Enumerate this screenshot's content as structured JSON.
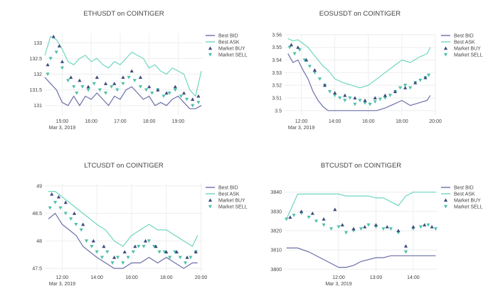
{
  "colors": {
    "bid": "#6b6fa8",
    "ask": "#6fd6c1",
    "buy": "#3f4a7e",
    "sell": "#4fc1a9",
    "grid": "#eeeeee"
  },
  "legend": {
    "bid": "Best BID",
    "ask": "Best ASK",
    "buy": "Market BUY",
    "sell": "Market SELL"
  },
  "chart_data": [
    {
      "type": "line",
      "title": "ETHUSDT on COINTIGER",
      "x_range": [
        14.4,
        19.85
      ],
      "ylim": [
        130.7,
        133.3
      ],
      "yticks": [
        {
          "v": 131,
          "label": "131"
        },
        {
          "v": 131.5,
          "label": "131.5"
        },
        {
          "v": 132,
          "label": "132"
        },
        {
          "v": 132.5,
          "label": "132.5"
        },
        {
          "v": 133,
          "label": "133"
        }
      ],
      "xticks": [
        {
          "v": 15,
          "label": "15:00",
          "sub": "Mar 3, 2019"
        },
        {
          "v": 16,
          "label": "16:00"
        },
        {
          "v": 17,
          "label": "17:00"
        },
        {
          "v": 18,
          "label": "18:00"
        },
        {
          "v": 19,
          "label": "19:00"
        }
      ],
      "series": [
        {
          "name": "Best BID",
          "x": [
            14.4,
            14.6,
            14.8,
            15.0,
            15.2,
            15.4,
            15.6,
            15.8,
            16.0,
            16.2,
            16.4,
            16.6,
            16.8,
            17.0,
            17.2,
            17.4,
            17.6,
            17.8,
            18.0,
            18.2,
            18.4,
            18.6,
            18.8,
            19.0,
            19.2,
            19.4,
            19.6,
            19.8
          ],
          "values": [
            131.9,
            131.7,
            131.5,
            131.1,
            131.0,
            131.3,
            131.0,
            131.3,
            131.2,
            131.4,
            131.2,
            131.0,
            131.3,
            131.2,
            131.5,
            131.6,
            131.4,
            131.2,
            131.3,
            131.0,
            131.1,
            131.0,
            131.2,
            131.3,
            131.1,
            130.9,
            130.9,
            131.0
          ]
        },
        {
          "name": "Best ASK",
          "x": [
            14.4,
            14.6,
            14.8,
            15.0,
            15.2,
            15.4,
            15.6,
            15.8,
            16.0,
            16.2,
            16.4,
            16.6,
            16.8,
            17.0,
            17.2,
            17.4,
            17.6,
            17.8,
            18.0,
            18.2,
            18.4,
            18.6,
            18.8,
            19.0,
            19.2,
            19.4,
            19.6,
            19.8
          ],
          "values": [
            132.6,
            133.2,
            133.1,
            132.8,
            132.4,
            132.3,
            132.5,
            132.6,
            132.4,
            132.5,
            132.3,
            132.2,
            132.4,
            132.3,
            132.5,
            132.7,
            132.6,
            132.5,
            132.2,
            132.3,
            132.1,
            132.0,
            132.2,
            132.1,
            132.0,
            131.5,
            131.3,
            132.1
          ]
        },
        {
          "name": "Market BUY",
          "x": [
            14.5,
            14.7,
            14.9,
            15.0,
            15.3,
            15.6,
            15.9,
            16.2,
            16.5,
            16.8,
            17.1,
            17.4,
            17.7,
            18.0,
            18.3,
            18.6,
            18.9,
            19.2,
            19.5,
            19.7
          ],
          "values": [
            132.3,
            133.2,
            132.9,
            132.4,
            131.9,
            131.8,
            131.6,
            131.9,
            131.7,
            131.7,
            131.9,
            132.1,
            131.9,
            131.6,
            131.5,
            131.4,
            131.6,
            131.4,
            131.2,
            131.3
          ]
        },
        {
          "name": "Market SELL",
          "x": [
            14.5,
            14.6,
            14.8,
            15.0,
            15.2,
            15.4,
            15.5,
            15.7,
            15.9,
            16.1,
            16.3,
            16.5,
            16.7,
            16.9,
            17.1,
            17.3,
            17.5,
            17.7,
            17.9,
            18.1,
            18.3,
            18.5,
            18.7,
            18.9,
            19.1,
            19.3,
            19.5,
            19.7
          ],
          "values": [
            132.0,
            132.5,
            132.7,
            132.2,
            131.8,
            131.6,
            131.4,
            131.6,
            131.5,
            131.7,
            131.5,
            131.4,
            131.6,
            131.5,
            131.7,
            131.9,
            131.8,
            131.6,
            131.5,
            131.4,
            131.5,
            131.3,
            131.4,
            131.5,
            131.3,
            131.2,
            131.0,
            131.1
          ]
        }
      ]
    },
    {
      "type": "line",
      "title": "EOSUSDT on COINTIGER",
      "x_range": [
        11.0,
        20.0
      ],
      "ylim": [
        3.4965,
        3.5605
      ],
      "yticks": [
        {
          "v": 3.5,
          "label": "3.5"
        },
        {
          "v": 3.51,
          "label": "3.51"
        },
        {
          "v": 3.52,
          "label": "3.52"
        },
        {
          "v": 3.53,
          "label": "3.53"
        },
        {
          "v": 3.54,
          "label": "3.54"
        },
        {
          "v": 3.55,
          "label": "3.55"
        },
        {
          "v": 3.56,
          "label": "3.56"
        }
      ],
      "xticks": [
        {
          "v": 12,
          "label": "12:00",
          "sub": "Mar 3, 2019"
        },
        {
          "v": 14,
          "label": "14:00"
        },
        {
          "v": 16,
          "label": "16:00"
        },
        {
          "v": 18,
          "label": "18:00"
        },
        {
          "v": 20,
          "label": "20:00"
        }
      ],
      "series": [
        {
          "name": "Best BID",
          "x": [
            11.2,
            11.5,
            11.8,
            12.1,
            12.4,
            12.7,
            13.0,
            13.3,
            13.6,
            14.0,
            14.5,
            15.0,
            15.5,
            16.0,
            16.5,
            17.0,
            17.5,
            18.0,
            18.5,
            19.0,
            19.5,
            19.7
          ],
          "values": [
            3.545,
            3.538,
            3.54,
            3.532,
            3.525,
            3.515,
            3.508,
            3.503,
            3.5,
            3.5,
            3.5,
            3.5,
            3.5,
            3.5,
            3.5,
            3.502,
            3.505,
            3.508,
            3.504,
            3.506,
            3.508,
            3.512
          ]
        },
        {
          "name": "Best ASK",
          "x": [
            11.2,
            11.5,
            11.8,
            12.1,
            12.4,
            12.7,
            13.0,
            13.3,
            13.6,
            14.0,
            14.5,
            15.0,
            15.5,
            16.0,
            16.5,
            17.0,
            17.5,
            18.0,
            18.5,
            19.0,
            19.5,
            19.7
          ],
          "values": [
            3.557,
            3.555,
            3.556,
            3.553,
            3.55,
            3.545,
            3.54,
            3.535,
            3.532,
            3.525,
            3.522,
            3.52,
            3.518,
            3.52,
            3.525,
            3.53,
            3.535,
            3.54,
            3.538,
            3.542,
            3.545,
            3.55
          ]
        },
        {
          "name": "Market BUY",
          "x": [
            11.4,
            11.8,
            12.3,
            12.8,
            13.4,
            14.0,
            14.6,
            15.2,
            15.8,
            16.4,
            17.0,
            17.6,
            18.2,
            18.8,
            19.4
          ],
          "values": [
            3.552,
            3.55,
            3.54,
            3.532,
            3.52,
            3.514,
            3.512,
            3.51,
            3.508,
            3.51,
            3.512,
            3.515,
            3.518,
            3.522,
            3.526
          ]
        },
        {
          "name": "Market SELL",
          "x": [
            11.3,
            11.6,
            11.9,
            12.2,
            12.5,
            12.8,
            13.1,
            13.4,
            13.7,
            14.0,
            14.3,
            14.6,
            14.9,
            15.2,
            15.5,
            15.8,
            16.1,
            16.4,
            16.7,
            17.0,
            17.3,
            17.6,
            17.9,
            18.2,
            18.5,
            18.8,
            19.1,
            19.4,
            19.6
          ],
          "values": [
            3.55,
            3.545,
            3.548,
            3.54,
            3.535,
            3.53,
            3.525,
            3.52,
            3.515,
            3.512,
            3.51,
            3.508,
            3.51,
            3.505,
            3.508,
            3.506,
            3.505,
            3.507,
            3.509,
            3.51,
            3.512,
            3.515,
            3.518,
            3.52,
            3.518,
            3.522,
            3.524,
            3.526,
            3.528
          ]
        }
      ]
    },
    {
      "type": "line",
      "title": "LTCUSDT on COINTIGER",
      "x_range": [
        11.0,
        20.1
      ],
      "ylim": [
        47.45,
        49.05
      ],
      "yticks": [
        {
          "v": 47.5,
          "label": "47.5"
        },
        {
          "v": 48,
          "label": "48"
        },
        {
          "v": 48.5,
          "label": "48.5"
        },
        {
          "v": 49,
          "label": "49"
        }
      ],
      "xticks": [
        {
          "v": 12,
          "label": "12:00",
          "sub": "Mar 3, 2019"
        },
        {
          "v": 14,
          "label": "14:00"
        },
        {
          "v": 16,
          "label": "16:00"
        },
        {
          "v": 18,
          "label": "18:00"
        },
        {
          "v": 20,
          "label": "20:00"
        }
      ],
      "series": [
        {
          "name": "Best BID",
          "x": [
            11.2,
            11.6,
            12.0,
            12.4,
            12.8,
            13.2,
            13.6,
            14.0,
            14.5,
            15.0,
            15.5,
            16.0,
            16.5,
            17.0,
            17.5,
            18.0,
            18.5,
            19.0,
            19.5,
            19.8
          ],
          "values": [
            48.4,
            48.5,
            48.3,
            48.2,
            48.1,
            47.9,
            47.8,
            47.7,
            47.6,
            47.5,
            47.5,
            47.6,
            47.6,
            47.7,
            47.6,
            47.7,
            47.6,
            47.5,
            47.6,
            47.6
          ]
        },
        {
          "name": "Best ASK",
          "x": [
            11.2,
            11.6,
            12.0,
            12.4,
            12.8,
            13.2,
            13.6,
            14.0,
            14.5,
            15.0,
            15.5,
            16.0,
            16.5,
            17.0,
            17.5,
            18.0,
            18.5,
            19.0,
            19.5,
            19.8
          ],
          "values": [
            48.9,
            48.9,
            48.8,
            48.7,
            48.6,
            48.5,
            48.4,
            48.3,
            48.2,
            48.0,
            47.9,
            48.1,
            48.2,
            48.3,
            48.2,
            48.2,
            48.1,
            48.0,
            47.9,
            48.1
          ]
        },
        {
          "name": "Market BUY",
          "x": [
            11.4,
            11.8,
            12.2,
            12.7,
            13.2,
            13.8,
            14.4,
            15.0,
            15.6,
            16.2,
            16.8,
            17.4,
            18.0,
            18.6,
            19.2,
            19.7
          ],
          "values": [
            48.85,
            48.8,
            48.7,
            48.5,
            48.3,
            48.0,
            47.9,
            47.7,
            47.8,
            47.9,
            48.0,
            47.9,
            47.8,
            47.8,
            47.7,
            47.8
          ]
        },
        {
          "name": "Market SELL",
          "x": [
            11.3,
            11.6,
            11.9,
            12.2,
            12.5,
            12.8,
            13.1,
            13.4,
            13.7,
            14.0,
            14.3,
            14.6,
            14.9,
            15.2,
            15.5,
            15.8,
            16.1,
            16.4,
            16.7,
            17.0,
            17.3,
            17.6,
            17.9,
            18.2,
            18.5,
            18.8,
            19.1,
            19.4,
            19.7
          ],
          "values": [
            48.6,
            48.7,
            48.6,
            48.5,
            48.4,
            48.3,
            48.2,
            48.0,
            47.9,
            47.8,
            47.7,
            47.8,
            47.6,
            47.7,
            47.6,
            47.7,
            47.8,
            47.9,
            47.9,
            48.0,
            47.9,
            47.8,
            47.8,
            47.7,
            47.8,
            47.7,
            47.6,
            47.7,
            47.8
          ]
        }
      ]
    },
    {
      "type": "line",
      "title": "BTCUSDT on COINTIGER",
      "x_range": [
        10.55,
        14.65
      ],
      "ylim": [
        3799,
        3841
      ],
      "yticks": [
        {
          "v": 3800,
          "label": "3800"
        },
        {
          "v": 3810,
          "label": "3810"
        },
        {
          "v": 3820,
          "label": "3820"
        },
        {
          "v": 3830,
          "label": "3830"
        },
        {
          "v": 3840,
          "label": "3840"
        }
      ],
      "xticks": [
        {
          "v": 12,
          "label": "12:00",
          "sub": "Mar 3, 2019"
        },
        {
          "v": 13,
          "label": "13:00"
        },
        {
          "v": 14,
          "label": "14:00"
        }
      ],
      "series": [
        {
          "name": "Best BID",
          "x": [
            10.6,
            10.9,
            11.2,
            11.5,
            11.8,
            12.0,
            12.2,
            12.4,
            12.6,
            12.8,
            13.0,
            13.2,
            13.4,
            13.6,
            13.8,
            14.0,
            14.2,
            14.4,
            14.6
          ],
          "values": [
            3811,
            3811,
            3809,
            3806,
            3803,
            3801,
            3801,
            3802,
            3804,
            3805,
            3806,
            3806,
            3807,
            3807,
            3807,
            3807,
            3807,
            3807,
            3807
          ]
        },
        {
          "name": "Best ASK",
          "x": [
            10.6,
            10.9,
            11.2,
            11.5,
            11.8,
            12.0,
            12.2,
            12.4,
            12.6,
            12.8,
            13.0,
            13.2,
            13.4,
            13.6,
            13.8,
            14.0,
            14.2,
            14.4,
            14.6
          ],
          "values": [
            3826,
            3839,
            3839,
            3839,
            3839,
            3839,
            3838,
            3838,
            3838,
            3838,
            3837,
            3837,
            3835,
            3833,
            3838,
            3840,
            3840,
            3840,
            3840
          ]
        },
        {
          "name": "Market BUY",
          "x": [
            10.7,
            11.0,
            11.3,
            11.6,
            11.9,
            12.1,
            12.4,
            12.7,
            13.0,
            13.3,
            13.6,
            13.8,
            14.0,
            14.3,
            14.5
          ],
          "values": [
            3827,
            3830,
            3829,
            3826,
            3831,
            3823,
            3821,
            3822,
            3823,
            3822,
            3820,
            3812,
            3822,
            3823,
            3822
          ]
        },
        {
          "name": "Market SELL",
          "x": [
            10.6,
            10.8,
            11.0,
            11.2,
            11.4,
            11.6,
            11.8,
            12.0,
            12.2,
            12.4,
            12.6,
            12.8,
            13.0,
            13.2,
            13.4,
            13.6,
            13.8,
            14.0,
            14.2,
            14.4,
            14.6
          ],
          "values": [
            3826,
            3828,
            3829,
            3827,
            3825,
            3823,
            3821,
            3822,
            3819,
            3820,
            3821,
            3823,
            3822,
            3821,
            3821,
            3819,
            3809,
            3821,
            3822,
            3823,
            3821
          ]
        }
      ]
    }
  ]
}
